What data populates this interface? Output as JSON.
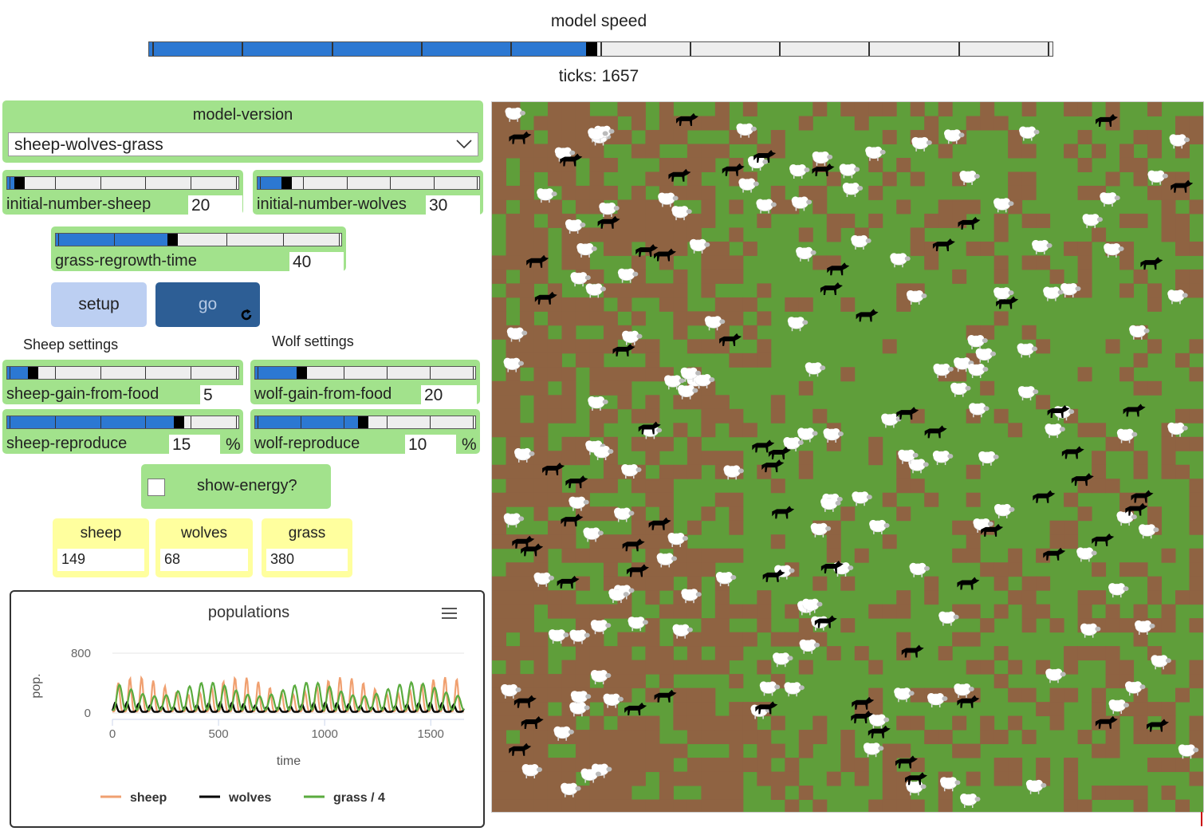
{
  "speed": {
    "label": "model speed",
    "value_fraction": 0.49
  },
  "ticks": {
    "label": "ticks: 1657"
  },
  "chooser": {
    "title": "model-version",
    "selected": "sheep-wolves-grass"
  },
  "sliders": {
    "initial_number_sheep": {
      "label": "initial-number-sheep",
      "value": "20",
      "fraction": 0.04,
      "unit": ""
    },
    "initial_number_wolves": {
      "label": "initial-number-wolves",
      "value": "30",
      "fraction": 0.12,
      "unit": ""
    },
    "grass_regrowth_time": {
      "label": "grass-regrowth-time",
      "value": "40",
      "fraction": 0.4,
      "unit": ""
    },
    "sheep_gain_from_food": {
      "label": "sheep-gain-from-food",
      "value": "5",
      "fraction": 0.1,
      "unit": ""
    },
    "wolf_gain_from_food": {
      "label": "wolf-gain-from-food",
      "value": "20",
      "fraction": 0.2,
      "unit": ""
    },
    "sheep_reproduce": {
      "label": "sheep-reproduce",
      "value": "15",
      "fraction": 0.73,
      "unit": "%"
    },
    "wolf_reproduce": {
      "label": "wolf-reproduce",
      "value": "10",
      "fraction": 0.48,
      "unit": "%"
    }
  },
  "buttons": {
    "setup": "setup",
    "go": "go"
  },
  "sections": {
    "sheep": "Sheep settings",
    "wolf": "Wolf settings"
  },
  "switch": {
    "label": "show-energy?",
    "checked": false
  },
  "monitors": {
    "sheep": {
      "label": "sheep",
      "value": "149"
    },
    "wolves": {
      "label": "wolves",
      "value": "68"
    },
    "grass": {
      "label": "grass",
      "value": "380"
    }
  },
  "chart_data": {
    "type": "line",
    "title": "populations",
    "xlabel": "time",
    "ylabel": "pop.",
    "xlim": [
      0,
      1657
    ],
    "ylim": [
      0,
      800
    ],
    "x_ticks": [
      "0",
      "500",
      "1000",
      "1500"
    ],
    "y_ticks": [
      "0",
      "800"
    ],
    "legend_position": "bottom",
    "series": [
      {
        "name": "sheep",
        "color": "#f0a070",
        "period": 55,
        "baseline": 20,
        "peak": 480
      },
      {
        "name": "wolves",
        "color": "#000000",
        "period": 55,
        "baseline": 15,
        "peak": 140
      },
      {
        "name": "grass / 4",
        "color": "#5aab3e",
        "period": 55,
        "baseline": 40,
        "peak": 410
      }
    ]
  },
  "colors": {
    "grass": "#5f9e3a",
    "dirt": "#8f6342",
    "slider_fill": "#2c78d2",
    "widget": "#a2e28c",
    "monitor": "#ffff9e"
  }
}
